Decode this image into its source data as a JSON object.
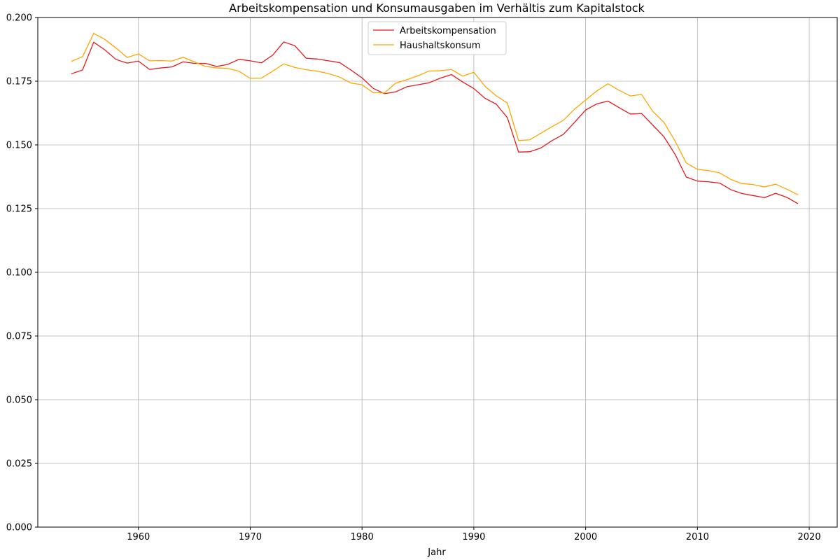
{
  "chart_data": {
    "type": "line",
    "title": "Arbeitskompensation und Konsumausgaben im Verhältis zum Kapitalstock",
    "xlabel": "Jahr",
    "ylabel": "",
    "xlim": [
      1951,
      2022.5
    ],
    "ylim": [
      0,
      0.2
    ],
    "x_ticks": [
      1960,
      1970,
      1980,
      1990,
      2000,
      2010,
      2020
    ],
    "y_ticks": [
      0.0,
      0.025,
      0.05,
      0.075,
      0.1,
      0.125,
      0.15,
      0.175,
      0.2
    ],
    "y_tick_labels": [
      "0.000",
      "0.025",
      "0.050",
      "0.075",
      "0.100",
      "0.125",
      "0.150",
      "0.175",
      "0.200"
    ],
    "grid": true,
    "legend_position": "top-center",
    "x": [
      1954,
      1955,
      1956,
      1957,
      1958,
      1959,
      1960,
      1961,
      1962,
      1963,
      1964,
      1965,
      1966,
      1967,
      1968,
      1969,
      1970,
      1971,
      1972,
      1973,
      1974,
      1975,
      1976,
      1977,
      1978,
      1979,
      1980,
      1981,
      1982,
      1983,
      1984,
      1985,
      1986,
      1987,
      1988,
      1989,
      1990,
      1991,
      1992,
      1993,
      1994,
      1995,
      1996,
      1997,
      1998,
      1999,
      2000,
      2001,
      2002,
      2003,
      2004,
      2005,
      2006,
      2007,
      2008,
      2009,
      2010,
      2011,
      2012,
      2013,
      2014,
      2015,
      2016,
      2017,
      2018,
      2019
    ],
    "series": [
      {
        "name": "Arbeitskompensation",
        "color": "#e41a1c",
        "values": [
          0.1779,
          0.1794,
          0.1903,
          0.1873,
          0.1835,
          0.1821,
          0.1829,
          0.1796,
          0.1802,
          0.1806,
          0.1826,
          0.182,
          0.182,
          0.1808,
          0.1816,
          0.1836,
          0.183,
          0.1822,
          0.1852,
          0.1904,
          0.1889,
          0.184,
          0.1837,
          0.183,
          0.1823,
          0.1794,
          0.1763,
          0.1722,
          0.1701,
          0.1708,
          0.1728,
          0.1736,
          0.1744,
          0.1762,
          0.1776,
          0.1747,
          0.1721,
          0.1683,
          0.166,
          0.1607,
          0.1472,
          0.1473,
          0.1488,
          0.1517,
          0.1541,
          0.1588,
          0.1637,
          0.1661,
          0.1672,
          0.1646,
          0.1621,
          0.1623,
          0.1578,
          0.1532,
          0.1463,
          0.1374,
          0.1358,
          0.1355,
          0.135,
          0.1324,
          0.1309,
          0.1301,
          0.1293,
          0.131,
          0.1294,
          0.1269
        ]
      },
      {
        "name": "Haushaltskonsum",
        "color": "#ffa500",
        "values": [
          0.1828,
          0.1846,
          0.1938,
          0.1914,
          0.188,
          0.1843,
          0.1857,
          0.183,
          0.1831,
          0.1829,
          0.1844,
          0.1826,
          0.1808,
          0.1802,
          0.18,
          0.1789,
          0.1761,
          0.1762,
          0.1789,
          0.1818,
          0.1804,
          0.1795,
          0.1789,
          0.178,
          0.1766,
          0.1743,
          0.1736,
          0.1705,
          0.1704,
          0.1742,
          0.1756,
          0.1771,
          0.179,
          0.1791,
          0.1796,
          0.177,
          0.1785,
          0.173,
          0.1693,
          0.1664,
          0.1517,
          0.152,
          0.1546,
          0.1572,
          0.1596,
          0.164,
          0.1676,
          0.1712,
          0.174,
          0.1714,
          0.1692,
          0.1698,
          0.1632,
          0.1589,
          0.1515,
          0.1429,
          0.1404,
          0.1399,
          0.139,
          0.1364,
          0.1348,
          0.1344,
          0.1335,
          0.1346,
          0.1326,
          0.1304
        ]
      }
    ]
  }
}
